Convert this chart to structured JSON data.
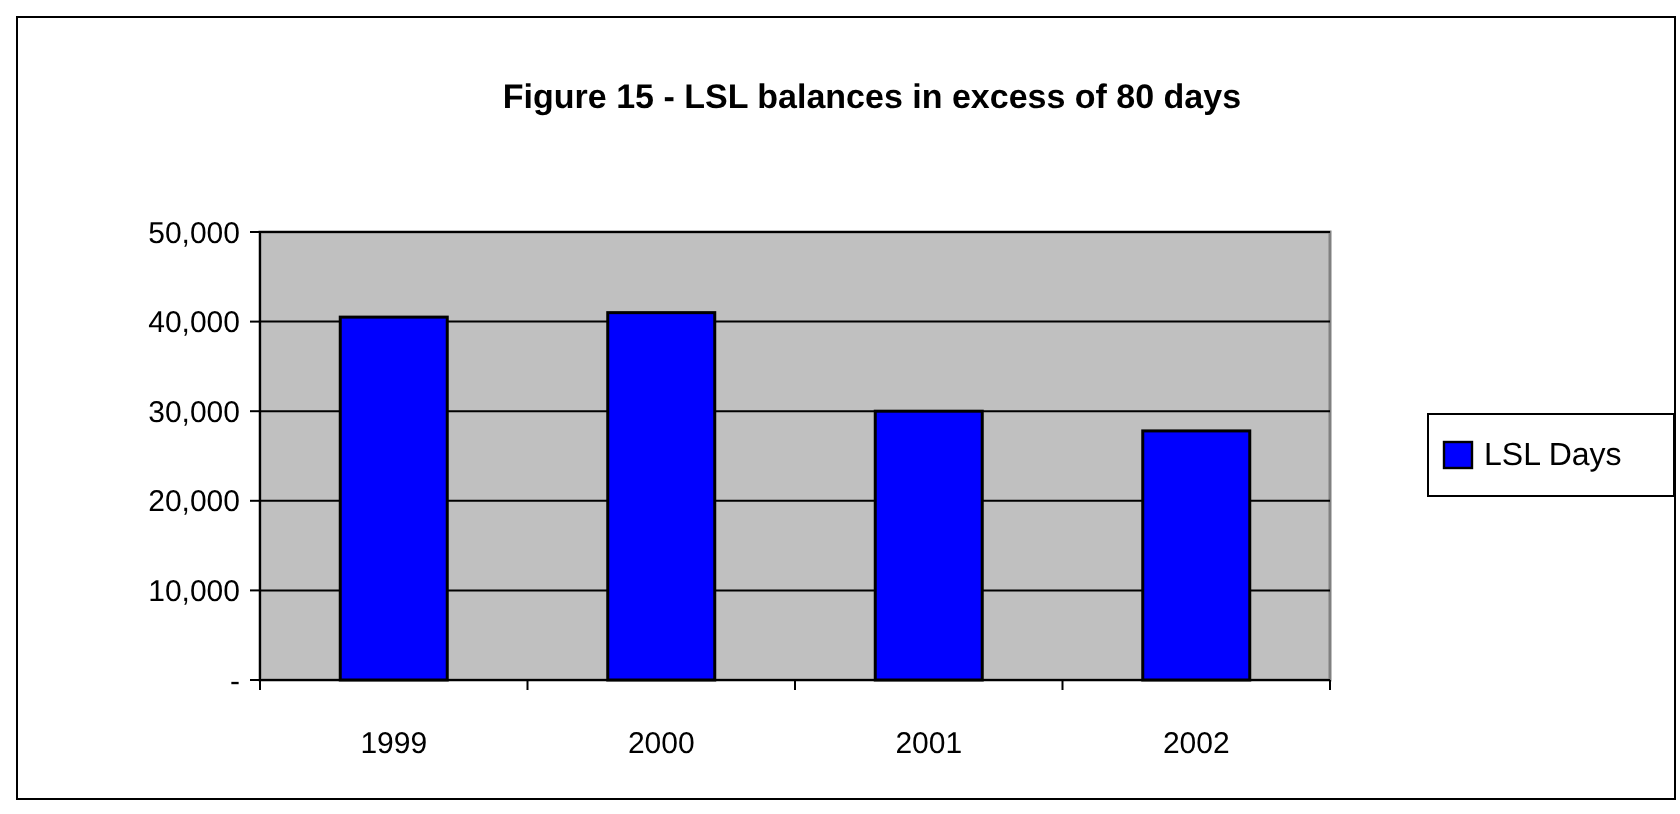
{
  "chart_data": {
    "type": "bar",
    "title": "Figure 15 - LSL balances in excess of 80 days",
    "categories": [
      "1999",
      "2000",
      "2001",
      "2002"
    ],
    "series": [
      {
        "name": "LSL Days",
        "color": "#0000ff",
        "values": [
          40500,
          41000,
          30000,
          27800
        ]
      }
    ],
    "ylim": [
      0,
      50000
    ],
    "yticks": [
      {
        "value": 0,
        "label": "-"
      },
      {
        "value": 10000,
        "label": "10,000"
      },
      {
        "value": 20000,
        "label": "20,000"
      },
      {
        "value": 30000,
        "label": "30,000"
      },
      {
        "value": 40000,
        "label": "40,000"
      },
      {
        "value": 50000,
        "label": "50,000"
      }
    ],
    "grid": "y",
    "legend": "right"
  }
}
